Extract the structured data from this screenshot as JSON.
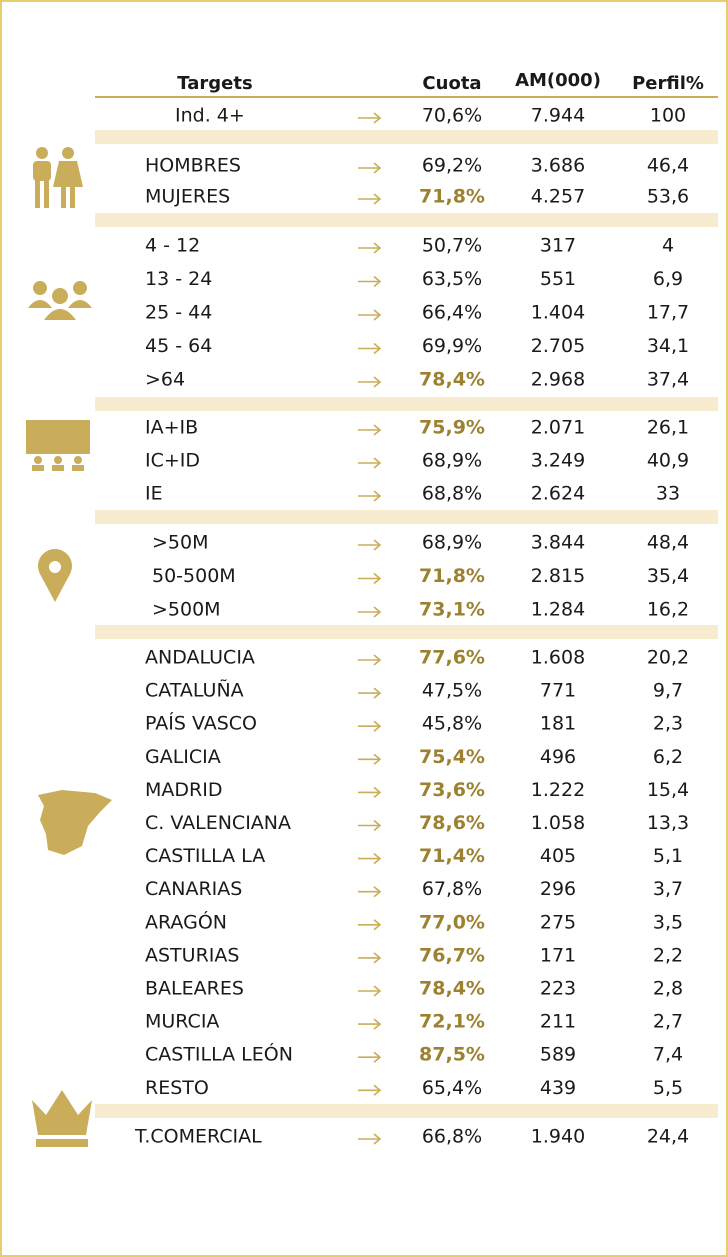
{
  "header": {
    "columns": [
      "Targets",
      "Cuota",
      "AM(000)",
      "Perfil%"
    ]
  },
  "groups": [
    {
      "rows": [
        {
          "label": "Ind. 4+",
          "cuota": "70,6%",
          "am": "7.944",
          "perfil": "100",
          "highlight": false
        }
      ]
    },
    {
      "rows": [
        {
          "label": "HOMBRES",
          "cuota": "69,2%",
          "am": "3.686",
          "perfil": "46,4",
          "highlight": false
        },
        {
          "label": "MUJERES",
          "cuota": "71,8%",
          "am": "4.257",
          "perfil": "53,6",
          "highlight": true
        }
      ]
    },
    {
      "rows": [
        {
          "label": "4 - 12",
          "cuota": "50,7%",
          "am": "317",
          "perfil": "4",
          "highlight": false
        },
        {
          "label": "13 - 24",
          "cuota": "63,5%",
          "am": "551",
          "perfil": "6,9",
          "highlight": false
        },
        {
          "label": "25 - 44",
          "cuota": "66,4%",
          "am": "1.404",
          "perfil": "17,7",
          "highlight": false
        },
        {
          "label": "45 - 64",
          "cuota": "69,9%",
          "am": "2.705",
          "perfil": "34,1",
          "highlight": false
        },
        {
          "label": ">64",
          "cuota": "78,4%",
          "am": "2.968",
          "perfil": "37,4",
          "highlight": true
        }
      ]
    },
    {
      "rows": [
        {
          "label": "IA+IB",
          "cuota": "75,9%",
          "am": "2.071",
          "perfil": "26,1",
          "highlight": true
        },
        {
          "label": "IC+ID",
          "cuota": "68,9%",
          "am": "3.249",
          "perfil": "40,9",
          "highlight": false
        },
        {
          "label": "IE",
          "cuota": "68,8%",
          "am": "2.624",
          "perfil": "33",
          "highlight": false
        }
      ]
    },
    {
      "rows": [
        {
          "label": ">50M",
          "cuota": "68,9%",
          "am": "3.844",
          "perfil": "48,4",
          "highlight": false
        },
        {
          "label": "50-500M",
          "cuota": "71,8%",
          "am": "2.815",
          "perfil": "35,4",
          "highlight": true
        },
        {
          "label": ">500M",
          "cuota": "73,1%",
          "am": "1.284",
          "perfil": "16,2",
          "highlight": true
        }
      ]
    },
    {
      "rows": [
        {
          "label": "ANDALUCIA",
          "cuota": "77,6%",
          "am": "1.608",
          "perfil": "20,2",
          "highlight": true
        },
        {
          "label": "CATALUÑA",
          "cuota": "47,5%",
          "am": "771",
          "perfil": "9,7",
          "highlight": false
        },
        {
          "label": "PAÍS VASCO",
          "cuota": "45,8%",
          "am": "181",
          "perfil": "2,3",
          "highlight": false
        },
        {
          "label": "GALICIA",
          "cuota": "75,4%",
          "am": "496",
          "perfil": "6,2",
          "highlight": true
        },
        {
          "label": "MADRID",
          "cuota": "73,6%",
          "am": "1.222",
          "perfil": "15,4",
          "highlight": true
        },
        {
          "label": "C. VALENCIANA",
          "cuota": "78,6%",
          "am": "1.058",
          "perfil": "13,3",
          "highlight": true
        },
        {
          "label": "CASTILLA LA",
          "cuota": "71,4%",
          "am": "405",
          "perfil": "5,1",
          "highlight": true
        },
        {
          "label": "CANARIAS",
          "cuota": "67,8%",
          "am": "296",
          "perfil": "3,7",
          "highlight": false
        },
        {
          "label": "ARAGÓN",
          "cuota": "77,0%",
          "am": "275",
          "perfil": "3,5",
          "highlight": true
        },
        {
          "label": "ASTURIAS",
          "cuota": "76,7%",
          "am": "171",
          "perfil": "2,2",
          "highlight": true
        },
        {
          "label": "BALEARES",
          "cuota": "78,4%",
          "am": "223",
          "perfil": "2,8",
          "highlight": true
        },
        {
          "label": "MURCIA",
          "cuota": "72,1%",
          "am": "211",
          "perfil": "2,7",
          "highlight": true
        },
        {
          "label": "CASTILLA LEÓN",
          "cuota": "87,5%",
          "am": "589",
          "perfil": "7,4",
          "highlight": true
        },
        {
          "label": "RESTO",
          "cuota": "65,4%",
          "am": "439",
          "perfil": "5,5",
          "highlight": false
        }
      ]
    },
    {
      "rows": [
        {
          "label": "T.COMERCIAL",
          "cuota": "66,8%",
          "am": "1.940",
          "perfil": "24,4",
          "highlight": false
        }
      ]
    }
  ]
}
